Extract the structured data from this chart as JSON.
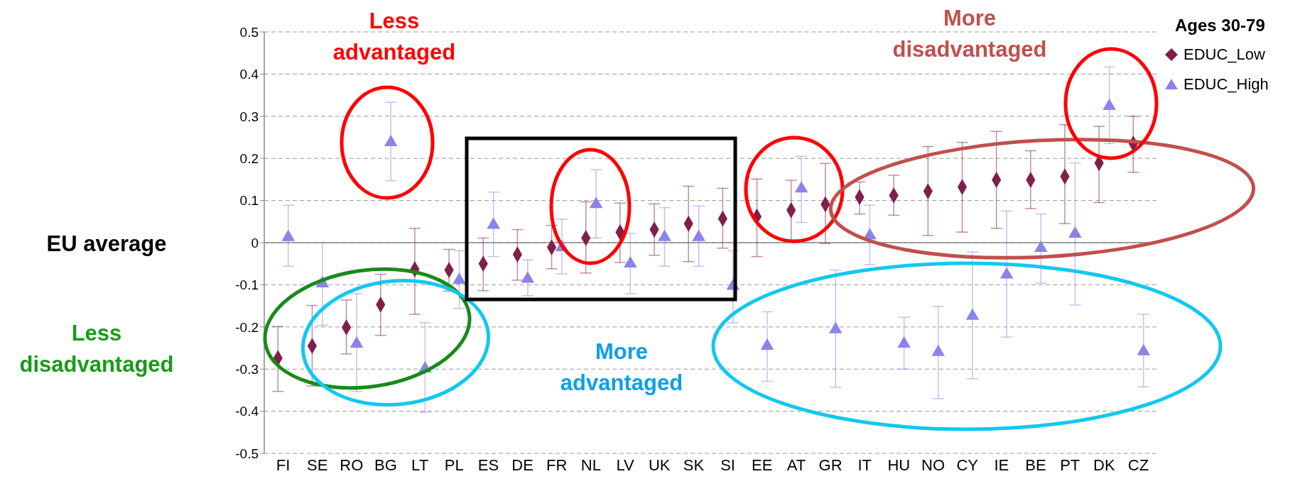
{
  "chart_data": {
    "type": "scatter",
    "categories": [
      "FI",
      "SE",
      "RO",
      "BG",
      "LT",
      "PL",
      "ES",
      "DE",
      "FR",
      "NL",
      "LV",
      "UK",
      "SK",
      "SI",
      "EE",
      "AT",
      "GR",
      "IT",
      "HU",
      "NO",
      "CY",
      "IE",
      "BE",
      "PT",
      "DK",
      "CZ"
    ],
    "series": [
      {
        "name": "EDUC_Low",
        "color": "#7f1f4a",
        "marker": "diamond",
        "values": [
          -0.274,
          -0.245,
          -0.201,
          -0.147,
          -0.063,
          -0.065,
          -0.05,
          -0.028,
          -0.011,
          0.011,
          0.025,
          0.031,
          0.045,
          0.057,
          0.062,
          0.077,
          0.091,
          0.108,
          0.112,
          0.122,
          0.132,
          0.149,
          0.149,
          0.157,
          0.189,
          0.235
        ],
        "errors": [
          [
            -0.353,
            -0.199
          ],
          [
            -0.34,
            -0.149
          ],
          [
            -0.264,
            -0.136
          ],
          [
            -0.22,
            -0.075
          ],
          [
            -0.17,
            0.034
          ],
          [
            -0.115,
            -0.016
          ],
          [
            -0.114,
            0.011
          ],
          [
            -0.089,
            0.031
          ],
          [
            -0.062,
            0.041
          ],
          [
            -0.072,
            0.097
          ],
          [
            -0.047,
            0.094
          ],
          [
            -0.03,
            0.092
          ],
          [
            -0.045,
            0.134
          ],
          [
            -0.013,
            0.129
          ],
          [
            -0.033,
            0.151
          ],
          [
            0.004,
            0.148
          ],
          [
            -0.002,
            0.188
          ],
          [
            0.068,
            0.144
          ],
          [
            0.065,
            0.16
          ],
          [
            0.017,
            0.228
          ],
          [
            0.025,
            0.238
          ],
          [
            0.034,
            0.264
          ],
          [
            0.081,
            0.218
          ],
          [
            0.045,
            0.28
          ],
          [
            0.095,
            0.276
          ],
          [
            0.167,
            0.3
          ]
        ]
      },
      {
        "name": "EDUC_High",
        "color": "#8b84e8",
        "marker": "triangle",
        "values": [
          0.013,
          -0.097,
          -0.24,
          0.238,
          -0.299,
          -0.089,
          0.042,
          -0.086,
          -0.011,
          0.091,
          -0.05,
          0.013,
          0.013,
          -0.103,
          -0.245,
          0.128,
          -0.206,
          0.017,
          -0.24,
          -0.26,
          -0.174,
          -0.076,
          -0.013,
          0.021,
          0.324,
          -0.258
        ],
        "errors": [
          [
            -0.056,
            0.089
          ],
          [
            -0.196,
            0
          ],
          [
            -0.353,
            -0.121
          ],
          [
            0.147,
            0.333
          ],
          [
            -0.402,
            -0.19
          ],
          [
            -0.156,
            -0.019
          ],
          [
            -0.033,
            0.12
          ],
          [
            -0.126,
            -0.041
          ],
          [
            -0.074,
            0.056
          ],
          [
            0.011,
            0.173
          ],
          [
            -0.121,
            0.022
          ],
          [
            -0.056,
            0.083
          ],
          [
            -0.056,
            0.087
          ],
          [
            -0.19,
            -0.019
          ],
          [
            -0.329,
            -0.164
          ],
          [
            0.048,
            0.205
          ],
          [
            -0.343,
            -0.065
          ],
          [
            -0.052,
            0.089
          ],
          [
            -0.3,
            -0.177
          ],
          [
            -0.37,
            -0.151
          ],
          [
            -0.323,
            -0.022
          ],
          [
            -0.224,
            0.075
          ],
          [
            -0.096,
            0.068
          ],
          [
            -0.148,
            0.189
          ],
          [
            0.235,
            0.417
          ],
          [
            -0.342,
            -0.17
          ]
        ]
      }
    ],
    "ylim": [
      -0.5,
      0.5
    ],
    "yticks": [
      -0.5,
      -0.4,
      -0.3,
      -0.2,
      -0.1,
      0,
      0.1,
      0.2,
      0.3,
      0.4,
      0.5
    ],
    "grid": "y",
    "legend": "top right",
    "legend_title": "Ages 30-79",
    "annotations": [
      "Less advantaged",
      "More disadvantaged",
      "EU average",
      "Less disadvantaged",
      "More advantaged"
    ]
  }
}
